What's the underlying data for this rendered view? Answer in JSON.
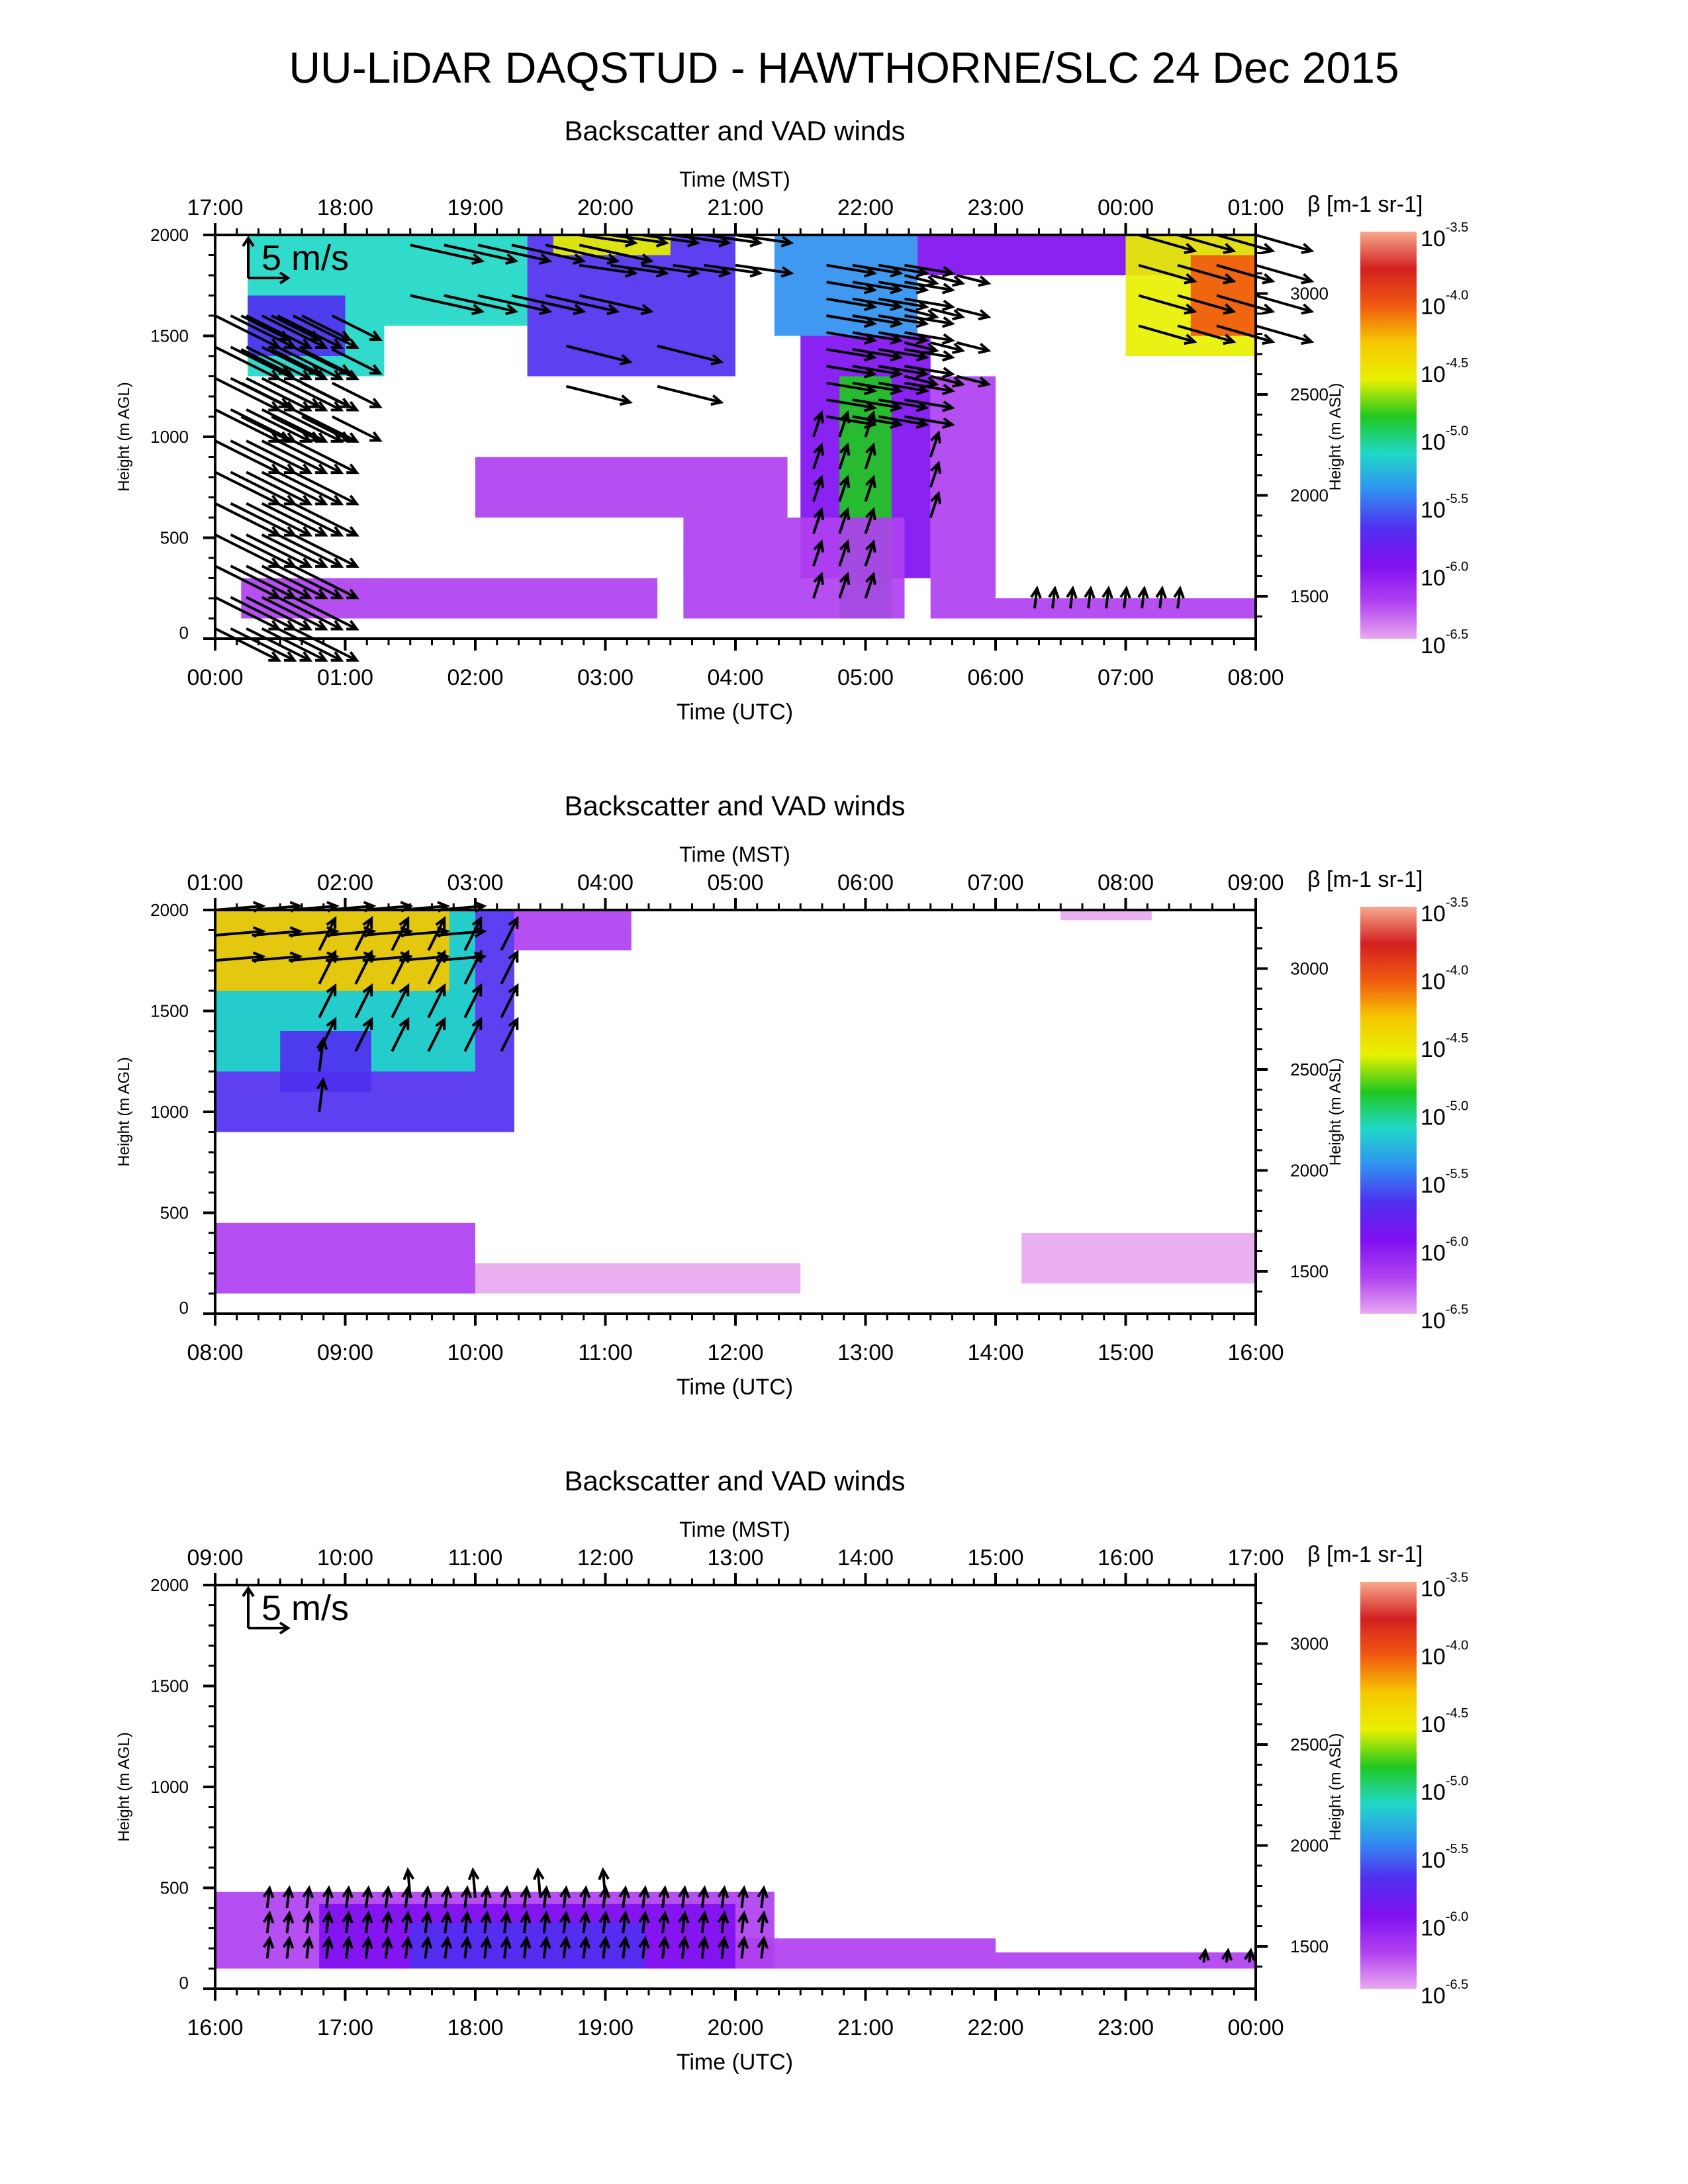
{
  "title": "UU-LiDAR DAQSTUD - HAWTHORNE/SLC 24 Dec 2015",
  "chart_data": [
    {
      "type": "heatmap",
      "title": "Backscatter and VAD winds",
      "xlabel_top": "Time (MST)",
      "xlabel": "Time (UTC)",
      "ylabel": "Height (m AGL)",
      "ylabel_right": "Height (m ASL)",
      "colorbar_label": "β [m-1 sr-1]",
      "x_ticks_utc": [
        "00:00",
        "01:00",
        "02:00",
        "03:00",
        "04:00",
        "05:00",
        "06:00",
        "07:00",
        "08:00"
      ],
      "x_ticks_mst": [
        "17:00",
        "18:00",
        "19:00",
        "20:00",
        "21:00",
        "22:00",
        "23:00",
        "00:00",
        "01:00"
      ],
      "ylim": [
        0,
        2000
      ],
      "y_ticks": [
        0,
        500,
        1000,
        1500,
        2000
      ],
      "y_ticks_right": [
        1500,
        2000,
        2500,
        3000
      ],
      "wind_scale_label": "5 m/s",
      "echoes": [
        {
          "t0": 0.25,
          "t1": 1.3,
          "h0": 1300,
          "h1": 2000,
          "level": -5.3
        },
        {
          "t0": 0.25,
          "t1": 1.0,
          "h0": 1400,
          "h1": 1700,
          "level": -5.8
        },
        {
          "t0": 1.3,
          "t1": 2.4,
          "h0": 1550,
          "h1": 2000,
          "level": -5.2
        },
        {
          "t0": 2.4,
          "t1": 4.0,
          "h0": 1300,
          "h1": 2000,
          "level": -5.8
        },
        {
          "t0": 2.6,
          "t1": 3.5,
          "h0": 1900,
          "h1": 2000,
          "level": -4.6
        },
        {
          "t0": 4.3,
          "t1": 5.4,
          "h0": 1500,
          "h1": 2000,
          "level": -5.6
        },
        {
          "t0": 4.5,
          "t1": 5.5,
          "h0": 300,
          "h1": 1500,
          "level": -6.2
        },
        {
          "t0": 4.8,
          "t1": 5.2,
          "h0": 100,
          "h1": 1300,
          "level": -5.1
        },
        {
          "t0": 5.4,
          "t1": 8.0,
          "h0": 1800,
          "h1": 2000,
          "level": -6.1
        },
        {
          "t0": 7.0,
          "t1": 8.0,
          "h0": 1400,
          "h1": 2000,
          "level": -4.8
        },
        {
          "t0": 7.5,
          "t1": 8.0,
          "h0": 1500,
          "h1": 1900,
          "level": -4.2
        },
        {
          "t0": 0.2,
          "t1": 3.4,
          "h0": 100,
          "h1": 300,
          "level": -6.3
        },
        {
          "t0": 2.0,
          "t1": 4.4,
          "h0": 600,
          "h1": 900,
          "level": -6.4
        },
        {
          "t0": 3.6,
          "t1": 5.3,
          "h0": 100,
          "h1": 600,
          "level": -6.3
        },
        {
          "t0": 5.5,
          "t1": 8.0,
          "h0": 100,
          "h1": 200,
          "level": -6.3
        },
        {
          "t0": 5.5,
          "t1": 6.0,
          "h0": 200,
          "h1": 1300,
          "level": -6.3
        }
      ],
      "winds": [
        {
          "t0": 0.0,
          "t1": 0.6,
          "h0": 50,
          "h1": 1600,
          "nt": 6,
          "nh": 11,
          "u": 8,
          "v": -4
        },
        {
          "t0": 0.2,
          "t1": 0.9,
          "h0": 1100,
          "h1": 1600,
          "nt": 4,
          "nh": 4,
          "u": 6,
          "v": -3
        },
        {
          "t0": 1.5,
          "t1": 2.8,
          "h0": 1700,
          "h1": 1950,
          "nt": 6,
          "nh": 2,
          "u": 9,
          "v": -2
        },
        {
          "t0": 2.8,
          "t1": 4.0,
          "h0": 1850,
          "h1": 2000,
          "nt": 6,
          "nh": 2,
          "u": 7,
          "v": -1
        },
        {
          "t0": 2.7,
          "t1": 3.4,
          "h0": 1250,
          "h1": 1450,
          "nt": 2,
          "nh": 2,
          "u": 8,
          "v": -2
        },
        {
          "t0": 4.7,
          "t1": 5.3,
          "h0": 1100,
          "h1": 1850,
          "nt": 4,
          "nh": 10,
          "u": 6,
          "v": -1
        },
        {
          "t0": 4.6,
          "t1": 5.0,
          "h0": 200,
          "h1": 1000,
          "nt": 3,
          "nh": 6,
          "u": 1,
          "v": 3
        },
        {
          "t0": 5.3,
          "t1": 5.7,
          "h0": 1300,
          "h1": 1800,
          "nt": 3,
          "nh": 4,
          "u": 4,
          "v": -1
        },
        {
          "t0": 5.5,
          "t1": 5.6,
          "h0": 600,
          "h1": 900,
          "nt": 1,
          "nh": 3,
          "u": 1,
          "v": 3
        },
        {
          "t0": 6.3,
          "t1": 7.4,
          "h0": 150,
          "h1": 150,
          "nt": 9,
          "nh": 1,
          "u": 0.3,
          "v": 2.5
        },
        {
          "t0": 7.1,
          "t1": 8.0,
          "h0": 1550,
          "h1": 2000,
          "nt": 4,
          "nh": 4,
          "u": 7,
          "v": -2
        }
      ]
    },
    {
      "type": "heatmap",
      "title": "Backscatter and VAD winds",
      "xlabel_top": "Time (MST)",
      "xlabel": "Time (UTC)",
      "ylabel": "Height (m AGL)",
      "ylabel_right": "Height (m ASL)",
      "colorbar_label": "β [m-1 sr-1]",
      "x_ticks_utc": [
        "08:00",
        "09:00",
        "10:00",
        "11:00",
        "12:00",
        "13:00",
        "14:00",
        "15:00",
        "16:00"
      ],
      "x_ticks_mst": [
        "01:00",
        "02:00",
        "03:00",
        "04:00",
        "05:00",
        "06:00",
        "07:00",
        "08:00",
        "09:00"
      ],
      "ylim": [
        0,
        2000
      ],
      "y_ticks": [
        0,
        500,
        1000,
        1500,
        2000
      ],
      "y_ticks_right": [
        1500,
        2000,
        2500,
        3000
      ],
      "wind_scale_label": "",
      "echoes": [
        {
          "t0": 0.0,
          "t1": 2.3,
          "h0": 900,
          "h1": 2000,
          "level": -5.9
        },
        {
          "t0": 0.0,
          "t1": 2.0,
          "h0": 1200,
          "h1": 2000,
          "level": -5.2
        },
        {
          "t0": 0.0,
          "t1": 1.8,
          "h0": 1600,
          "h1": 2000,
          "level": -4.3
        },
        {
          "t0": 0.5,
          "t1": 1.2,
          "h0": 1100,
          "h1": 1400,
          "level": -5.7
        },
        {
          "t0": 2.3,
          "t1": 3.2,
          "h0": 1800,
          "h1": 2000,
          "level": -6.3
        },
        {
          "t0": 0.0,
          "t1": 2.0,
          "h0": 100,
          "h1": 450,
          "level": -6.3
        },
        {
          "t0": 2.0,
          "t1": 4.5,
          "h0": 100,
          "h1": 250,
          "level": -6.6
        },
        {
          "t0": 6.2,
          "t1": 8.0,
          "h0": 150,
          "h1": 400,
          "level": -6.6
        },
        {
          "t0": 6.5,
          "t1": 7.2,
          "h0": 1950,
          "h1": 2000,
          "level": -6.6
        }
      ],
      "winds": [
        {
          "t0": 0.0,
          "t1": 1.7,
          "h0": 1750,
          "h1": 2000,
          "nt": 7,
          "nh": 3,
          "u": 6,
          "v": 0.5
        },
        {
          "t0": 0.8,
          "t1": 2.2,
          "h0": 1300,
          "h1": 1800,
          "nt": 6,
          "nh": 4,
          "u": 2,
          "v": 4
        },
        {
          "t0": 0.8,
          "t1": 1.0,
          "h0": 1000,
          "h1": 1200,
          "nt": 1,
          "nh": 2,
          "u": 0.5,
          "v": 4
        }
      ]
    },
    {
      "type": "heatmap",
      "title": "Backscatter and VAD winds",
      "xlabel_top": "Time (MST)",
      "xlabel": "Time (UTC)",
      "ylabel": "Height (m AGL)",
      "ylabel_right": "Height (m ASL)",
      "colorbar_label": "β [m-1 sr-1]",
      "x_ticks_utc": [
        "16:00",
        "17:00",
        "18:00",
        "19:00",
        "20:00",
        "21:00",
        "22:00",
        "23:00",
        "00:00"
      ],
      "x_ticks_mst": [
        "09:00",
        "10:00",
        "11:00",
        "12:00",
        "13:00",
        "14:00",
        "15:00",
        "16:00",
        "17:00"
      ],
      "ylim": [
        0,
        2000
      ],
      "y_ticks": [
        0,
        500,
        1000,
        1500,
        2000
      ],
      "y_ticks_right": [
        1500,
        2000,
        2500,
        3000
      ],
      "wind_scale_label": "5 m/s",
      "echoes": [
        {
          "t0": 0.0,
          "t1": 4.3,
          "h0": 100,
          "h1": 480,
          "level": -6.4
        },
        {
          "t0": 0.8,
          "t1": 4.0,
          "h0": 100,
          "h1": 420,
          "level": -6.1
        },
        {
          "t0": 1.5,
          "t1": 3.3,
          "h0": 100,
          "h1": 330,
          "level": -5.9
        },
        {
          "t0": 4.0,
          "t1": 6.0,
          "h0": 100,
          "h1": 250,
          "level": -6.4
        },
        {
          "t0": 6.0,
          "t1": 8.0,
          "h0": 100,
          "h1": 180,
          "level": -6.3
        }
      ],
      "winds": [
        {
          "t0": 0.4,
          "t1": 4.2,
          "h0": 150,
          "h1": 400,
          "nt": 26,
          "nh": 3,
          "u": 0.3,
          "v": 2.5
        },
        {
          "t0": 1.5,
          "t1": 3.0,
          "h0": 450,
          "h1": 550,
          "nt": 4,
          "nh": 1,
          "u": -0.3,
          "v": 3.5
        },
        {
          "t0": 7.6,
          "t1": 7.95,
          "h0": 130,
          "h1": 130,
          "nt": 3,
          "nh": 1,
          "u": 0.2,
          "v": 1.5
        }
      ]
    }
  ],
  "colorbar": {
    "ticks": [
      "10^-3.5",
      "10^-4.0",
      "10^-4.5",
      "10^-5.0",
      "10^-5.5",
      "10^-6.0",
      "10^-6.5"
    ],
    "colors": [
      "#f7a98f",
      "#d32020",
      "#f05a10",
      "#f5c800",
      "#e8f000",
      "#20c820",
      "#20d8c8",
      "#3090f0",
      "#5030f0",
      "#8010f0",
      "#b040f0",
      "#e8a8f0"
    ]
  }
}
